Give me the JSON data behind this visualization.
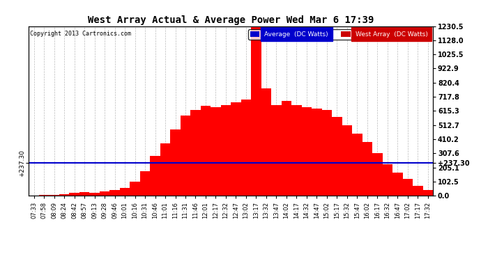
{
  "title": "West Array Actual & Average Power Wed Mar 6 17:39",
  "copyright": "Copyright 2013 Cartronics.com",
  "legend_avg": "Average  (DC Watts)",
  "legend_west": "West Array  (DC Watts)",
  "avg_value": 237.3,
  "ymax": 1230.5,
  "ymin": 0.0,
  "yticks_right": [
    0.0,
    102.5,
    205.1,
    307.6,
    410.2,
    512.7,
    615.3,
    717.8,
    820.4,
    922.9,
    1025.5,
    1128.0,
    1230.5
  ],
  "background_color": "#ffffff",
  "fill_color": "#ff0000",
  "avg_line_color": "#0000cc",
  "grid_color": "#bbbbbb",
  "x_labels": [
    "07:33",
    "07:58",
    "08:09",
    "08:24",
    "08:42",
    "08:57",
    "09:13",
    "09:28",
    "09:46",
    "10:01",
    "10:16",
    "10:31",
    "10:46",
    "11:01",
    "11:16",
    "11:31",
    "11:46",
    "12:01",
    "12:17",
    "12:32",
    "12:47",
    "13:02",
    "13:17",
    "13:32",
    "13:47",
    "14:02",
    "14:17",
    "14:32",
    "14:47",
    "15:02",
    "15:17",
    "15:32",
    "15:47",
    "16:02",
    "16:17",
    "16:32",
    "16:47",
    "17:02",
    "17:17",
    "17:32"
  ],
  "west_data": [
    3,
    4,
    6,
    10,
    20,
    28,
    22,
    30,
    40,
    55,
    100,
    180,
    290,
    380,
    480,
    580,
    620,
    650,
    640,
    660,
    680,
    700,
    1230,
    780,
    660,
    690,
    660,
    640,
    630,
    620,
    570,
    510,
    450,
    390,
    310,
    230,
    170,
    120,
    70,
    40
  ]
}
